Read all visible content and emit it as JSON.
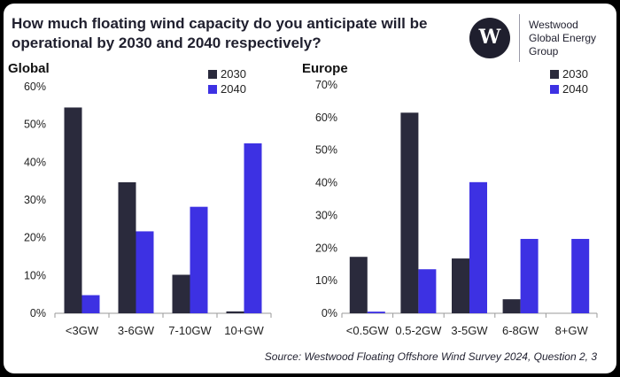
{
  "title": "How much floating wind capacity do you anticipate will be operational by 2030 and 2040 respectively?",
  "logo": {
    "monogram": "W",
    "lines": [
      "Westwood",
      "Global Energy",
      "Group"
    ]
  },
  "source": "Source: Westwood Floating Offshore Wind Survey 2024, Question 2, 3",
  "colors": {
    "2030": "#2a2a3c",
    "2040": "#3d31e3"
  },
  "chart_data": [
    {
      "type": "bar",
      "title": "Global",
      "categories": [
        "<3GW",
        "3-6GW",
        "7-10GW",
        "10+GW"
      ],
      "series": [
        {
          "name": "2030",
          "values": [
            54.5,
            34.7,
            10.2,
            0.5
          ]
        },
        {
          "name": "2040",
          "values": [
            4.8,
            21.7,
            28.2,
            45.0
          ]
        }
      ],
      "ylim": [
        0,
        60
      ],
      "yticks": [
        0,
        10,
        20,
        30,
        40,
        50,
        60
      ],
      "ytick_labels": [
        "0%",
        "10%",
        "20%",
        "30%",
        "40%",
        "50%",
        "60%"
      ],
      "legend": "top-right"
    },
    {
      "type": "bar",
      "title": "Europe",
      "categories": [
        "<0.5GW",
        "0.5-2GW",
        "3-5GW",
        "6-8GW",
        "8+GW"
      ],
      "series": [
        {
          "name": "2030",
          "values": [
            17.3,
            61.5,
            16.8,
            4.3,
            0
          ]
        },
        {
          "name": "2040",
          "values": [
            0.5,
            13.5,
            40.2,
            22.8,
            22.8
          ]
        }
      ],
      "ylim": [
        0,
        70
      ],
      "yticks": [
        0,
        10,
        20,
        30,
        40,
        50,
        60,
        70
      ],
      "ytick_labels": [
        "0%",
        "10%",
        "20%",
        "30%",
        "40%",
        "50%",
        "60%",
        "70%"
      ],
      "legend": "top-right"
    }
  ]
}
